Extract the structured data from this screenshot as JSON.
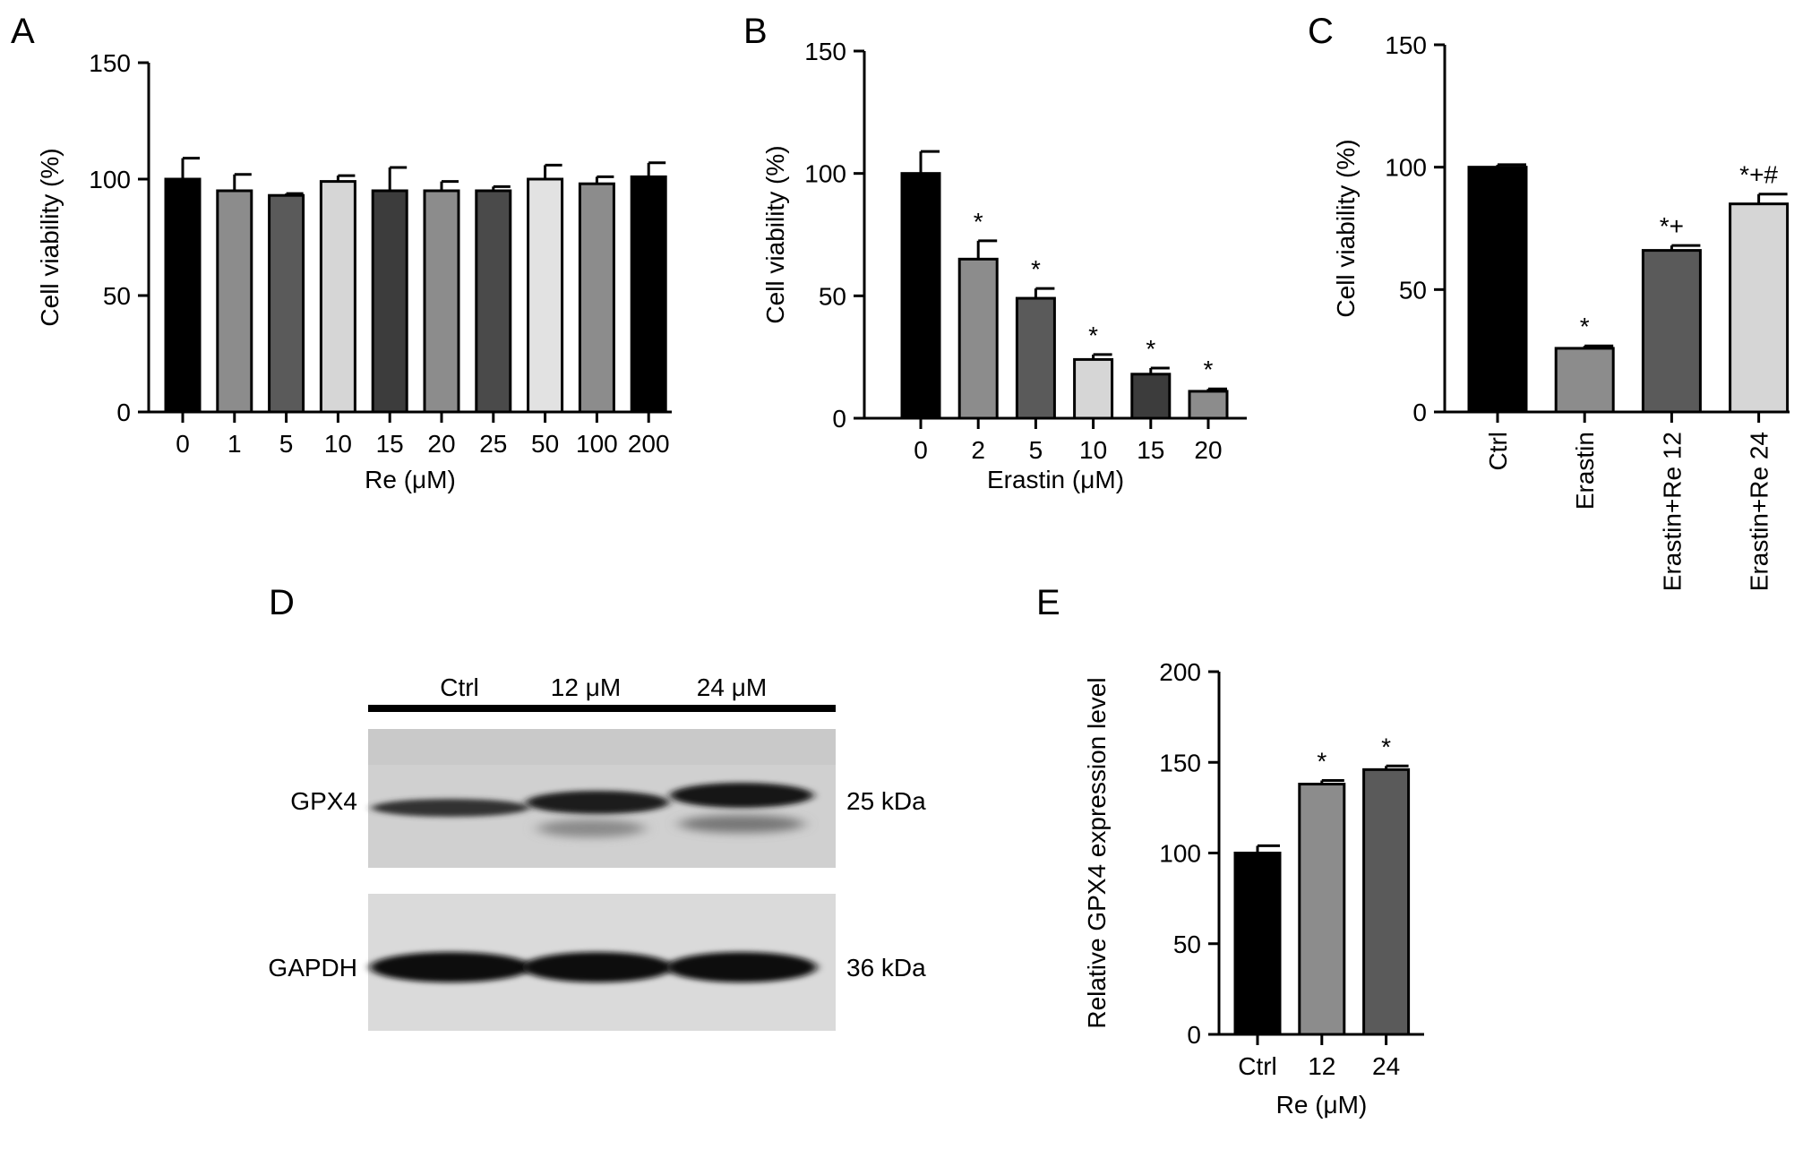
{
  "panels": [
    {
      "label": "A",
      "type": "bar",
      "ylabel": "Cell viability (%)",
      "xlabel": "Re (μM)",
      "ylim": [
        0,
        150
      ],
      "yticks": [
        0,
        50,
        100,
        150
      ],
      "categories": [
        "0",
        "1",
        "5",
        "10",
        "15",
        "20",
        "25",
        "50",
        "100",
        "200"
      ],
      "values": [
        100,
        95,
        93,
        99,
        95,
        95,
        95,
        100,
        98,
        101
      ],
      "errors": [
        9,
        7,
        0.8,
        2.5,
        10,
        4,
        1.8,
        6,
        3,
        6
      ],
      "annotations": [
        "",
        "",
        "",
        "",
        "",
        "",
        "",
        "",
        "",
        ""
      ],
      "colors": [
        "#000000",
        "#8c8c8c",
        "#5a5a5a",
        "#d6d6d6",
        "#3c3c3c",
        "#8c8c8c",
        "#4a4a4a",
        "#e2e2e2",
        "#8c8c8c",
        "#000000"
      ]
    },
    {
      "label": "B",
      "type": "bar",
      "ylabel": "Cell viability (%)",
      "xlabel": "Erastin (μM)",
      "ylim": [
        0,
        150
      ],
      "yticks": [
        0,
        50,
        100,
        150
      ],
      "categories": [
        "0",
        "2",
        "5",
        "10",
        "15",
        "20"
      ],
      "values": [
        100,
        65,
        49,
        24,
        18,
        11
      ],
      "errors": [
        9,
        7.5,
        4,
        2,
        2.5,
        1
      ],
      "annotations": [
        "",
        "*",
        "*",
        "*",
        "*",
        "*"
      ],
      "colors": [
        "#000000",
        "#8c8c8c",
        "#5a5a5a",
        "#d6d6d6",
        "#3c3c3c",
        "#8c8c8c"
      ]
    },
    {
      "label": "C",
      "type": "bar",
      "ylabel": "Cell viability (%)",
      "xlabel": "",
      "ylim": [
        0,
        150
      ],
      "yticks": [
        0,
        50,
        100,
        150
      ],
      "categories": [
        "Ctrl",
        "Erastin",
        "Erastin+Re 12",
        "Erastin+Re 24"
      ],
      "values": [
        100,
        26,
        66,
        85
      ],
      "errors": [
        1,
        1,
        2,
        4
      ],
      "annotations": [
        "",
        "*",
        "*+",
        "*+#"
      ],
      "colors": [
        "#000000",
        "#8c8c8c",
        "#5a5a5a",
        "#d6d6d6"
      ]
    },
    {
      "label": "E",
      "type": "bar",
      "ylabel": "Relative GPX4 expression level",
      "xlabel": "Re (μM)",
      "ylim": [
        0,
        200
      ],
      "yticks": [
        0,
        50,
        100,
        150,
        200
      ],
      "categories": [
        "Ctrl",
        "12",
        "24"
      ],
      "values": [
        100,
        138,
        146
      ],
      "errors": [
        4,
        2,
        2
      ],
      "annotations": [
        "",
        "*",
        "*"
      ],
      "colors": [
        "#000000",
        "#8c8c8c",
        "#5a5a5a"
      ]
    }
  ],
  "blot": {
    "label": "D",
    "lanes": [
      "Ctrl",
      "12 μM",
      "24 μM"
    ],
    "rows": [
      {
        "protein": "GPX4",
        "size": "25 kDa"
      },
      {
        "protein": "GAPDH",
        "size": "36 kDa"
      }
    ]
  }
}
